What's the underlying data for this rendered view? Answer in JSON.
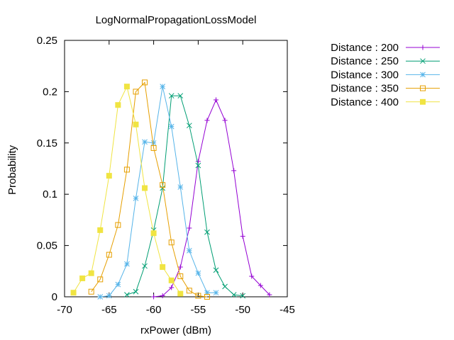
{
  "chart_data": {
    "type": "line",
    "title": "LogNormalPropagationLossModel",
    "xlabel": "rxPower (dBm)",
    "ylabel": "Probability",
    "xlim": [
      -70,
      -45
    ],
    "ylim": [
      0,
      0.25
    ],
    "xticks": [
      -70,
      -65,
      -60,
      -55,
      -50,
      -45
    ],
    "yticks": [
      0,
      0.05,
      0.1,
      0.15,
      0.2,
      0.25
    ],
    "xtick_labels": [
      "-70",
      "-65",
      "-60",
      "-55",
      "-50",
      "-45"
    ],
    "ytick_labels": [
      "0",
      "0.05",
      "0.1",
      "0.15",
      "0.2",
      "0.25"
    ],
    "grid": false,
    "legend_position": "right",
    "series": [
      {
        "name": "Distance : 200",
        "color": "#9400d3",
        "marker": "plus",
        "x": [
          -60,
          -59,
          -58,
          -57,
          -56,
          -55,
          -54,
          -53,
          -52,
          -51,
          -50,
          -49,
          -48,
          -47
        ],
        "y": [
          0.0,
          0.001,
          0.009,
          0.029,
          0.067,
          0.132,
          0.172,
          0.192,
          0.172,
          0.123,
          0.059,
          0.02,
          0.011,
          0.002
        ]
      },
      {
        "name": "Distance : 250",
        "color": "#009e73",
        "marker": "cross",
        "x": [
          -63,
          -62,
          -61,
          -60,
          -59,
          -58,
          -57,
          -56,
          -55,
          -54,
          -53,
          -52,
          -51,
          -50
        ],
        "y": [
          0.002,
          0.005,
          0.03,
          0.065,
          0.106,
          0.196,
          0.196,
          0.167,
          0.128,
          0.063,
          0.026,
          0.01,
          0.002,
          0.001
        ]
      },
      {
        "name": "Distance : 300",
        "color": "#56b4e9",
        "marker": "star",
        "x": [
          -66,
          -65,
          -64,
          -63,
          -62,
          -61,
          -60,
          -59,
          -58,
          -57,
          -56,
          -55,
          -54,
          -53
        ],
        "y": [
          0.0,
          0.001,
          0.012,
          0.032,
          0.096,
          0.151,
          0.15,
          0.205,
          0.166,
          0.107,
          0.045,
          0.023,
          0.004,
          0.004
        ]
      },
      {
        "name": "Distance : 350",
        "color": "#e69f00",
        "marker": "square-open",
        "x": [
          -67,
          -66,
          -65,
          -64,
          -63,
          -62,
          -61,
          -60,
          -59,
          -58,
          -57,
          -56,
          -55,
          -54
        ],
        "y": [
          0.005,
          0.017,
          0.041,
          0.07,
          0.124,
          0.2,
          0.209,
          0.145,
          0.109,
          0.053,
          0.02,
          0.006,
          0.001,
          0.0
        ]
      },
      {
        "name": "Distance : 400",
        "color": "#f0e442",
        "marker": "square-filled",
        "x": [
          -69,
          -68,
          -67,
          -66,
          -65,
          -64,
          -63,
          -62,
          -61,
          -60,
          -59,
          -58,
          -57
        ],
        "y": [
          0.004,
          0.018,
          0.023,
          0.065,
          0.118,
          0.187,
          0.205,
          0.168,
          0.106,
          0.062,
          0.029,
          0.016,
          0.003
        ]
      }
    ]
  }
}
